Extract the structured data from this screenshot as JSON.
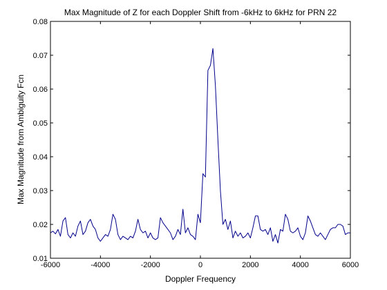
{
  "chart_data": {
    "type": "line",
    "title": "Max Magnitude of Z for each Doppler Shift from -6kHz to 6kHz for PRN 22",
    "xlabel": "Doppler Frequency",
    "ylabel": "Max Magnitude from Ambiguity Fcn",
    "xlim": [
      -6000,
      6000
    ],
    "ylim": [
      0.01,
      0.08
    ],
    "xticks": [
      -6000,
      -4000,
      -2000,
      0,
      2000,
      4000,
      6000
    ],
    "xtick_labels": [
      "-6000",
      "-4000",
      "-2000",
      "0",
      "2000",
      "4000",
      "6000"
    ],
    "yticks": [
      0.01,
      0.02,
      0.03,
      0.04,
      0.05,
      0.06,
      0.07,
      0.08
    ],
    "ytick_labels": [
      "0.01",
      "0.02",
      "0.03",
      "0.04",
      "0.05",
      "0.06",
      "0.07",
      "0.08"
    ],
    "grid": false,
    "legend": false,
    "line_color": "#00008b",
    "series": [
      {
        "x": [
          -6000,
          -5900,
          -5800,
          -5700,
          -5600,
          -5500,
          -5400,
          -5300,
          -5200,
          -5100,
          -5000,
          -4900,
          -4800,
          -4700,
          -4600,
          -4500,
          -4400,
          -4300,
          -4200,
          -4100,
          -4000,
          -3900,
          -3800,
          -3700,
          -3600,
          -3500,
          -3400,
          -3300,
          -3200,
          -3100,
          -3000,
          -2900,
          -2800,
          -2700,
          -2600,
          -2500,
          -2400,
          -2300,
          -2200,
          -2100,
          -2000,
          -1900,
          -1800,
          -1700,
          -1600,
          -1500,
          -1400,
          -1300,
          -1200,
          -1100,
          -1000,
          -900,
          -800,
          -700,
          -600,
          -500,
          -400,
          -300,
          -200,
          -100,
          0,
          100,
          200,
          300,
          400,
          500,
          600,
          700,
          800,
          900,
          1000,
          1100,
          1200,
          1300,
          1400,
          1500,
          1600,
          1700,
          1800,
          1900,
          2000,
          2100,
          2200,
          2300,
          2400,
          2500,
          2600,
          2700,
          2800,
          2900,
          3000,
          3100,
          3200,
          3300,
          3400,
          3500,
          3600,
          3700,
          3800,
          3900,
          4000,
          4100,
          4200,
          4300,
          4400,
          4500,
          4600,
          4700,
          4800,
          4900,
          5000,
          5100,
          5200,
          5300,
          5400,
          5500,
          5600,
          5700,
          5800,
          5900,
          6000
        ],
        "y": [
          0.0175,
          0.018,
          0.0172,
          0.0185,
          0.0165,
          0.021,
          0.022,
          0.017,
          0.016,
          0.0175,
          0.0165,
          0.0195,
          0.021,
          0.017,
          0.018,
          0.0205,
          0.0215,
          0.0195,
          0.0185,
          0.016,
          0.015,
          0.016,
          0.017,
          0.0165,
          0.0185,
          0.023,
          0.0215,
          0.017,
          0.0155,
          0.0165,
          0.016,
          0.0155,
          0.0165,
          0.016,
          0.018,
          0.0215,
          0.0185,
          0.0175,
          0.018,
          0.016,
          0.0175,
          0.016,
          0.0155,
          0.016,
          0.022,
          0.0205,
          0.0195,
          0.0185,
          0.0175,
          0.0155,
          0.0165,
          0.0185,
          0.017,
          0.0245,
          0.0175,
          0.019,
          0.017,
          0.0165,
          0.0155,
          0.023,
          0.0205,
          0.035,
          0.034,
          0.0655,
          0.067,
          0.072,
          0.061,
          0.045,
          0.03,
          0.02,
          0.0215,
          0.0185,
          0.021,
          0.016,
          0.018,
          0.0165,
          0.0175,
          0.016,
          0.0165,
          0.0175,
          0.016,
          0.019,
          0.0225,
          0.0225,
          0.0185,
          0.018,
          0.0185,
          0.017,
          0.019,
          0.015,
          0.017,
          0.0145,
          0.0185,
          0.018,
          0.023,
          0.0215,
          0.018,
          0.0175,
          0.018,
          0.019,
          0.0165,
          0.0155,
          0.0175,
          0.0225,
          0.021,
          0.019,
          0.017,
          0.0165,
          0.0175,
          0.0165,
          0.0155,
          0.017,
          0.0185,
          0.019,
          0.019,
          0.02,
          0.02,
          0.0195,
          0.017,
          0.0175,
          0.0175
        ]
      }
    ]
  }
}
